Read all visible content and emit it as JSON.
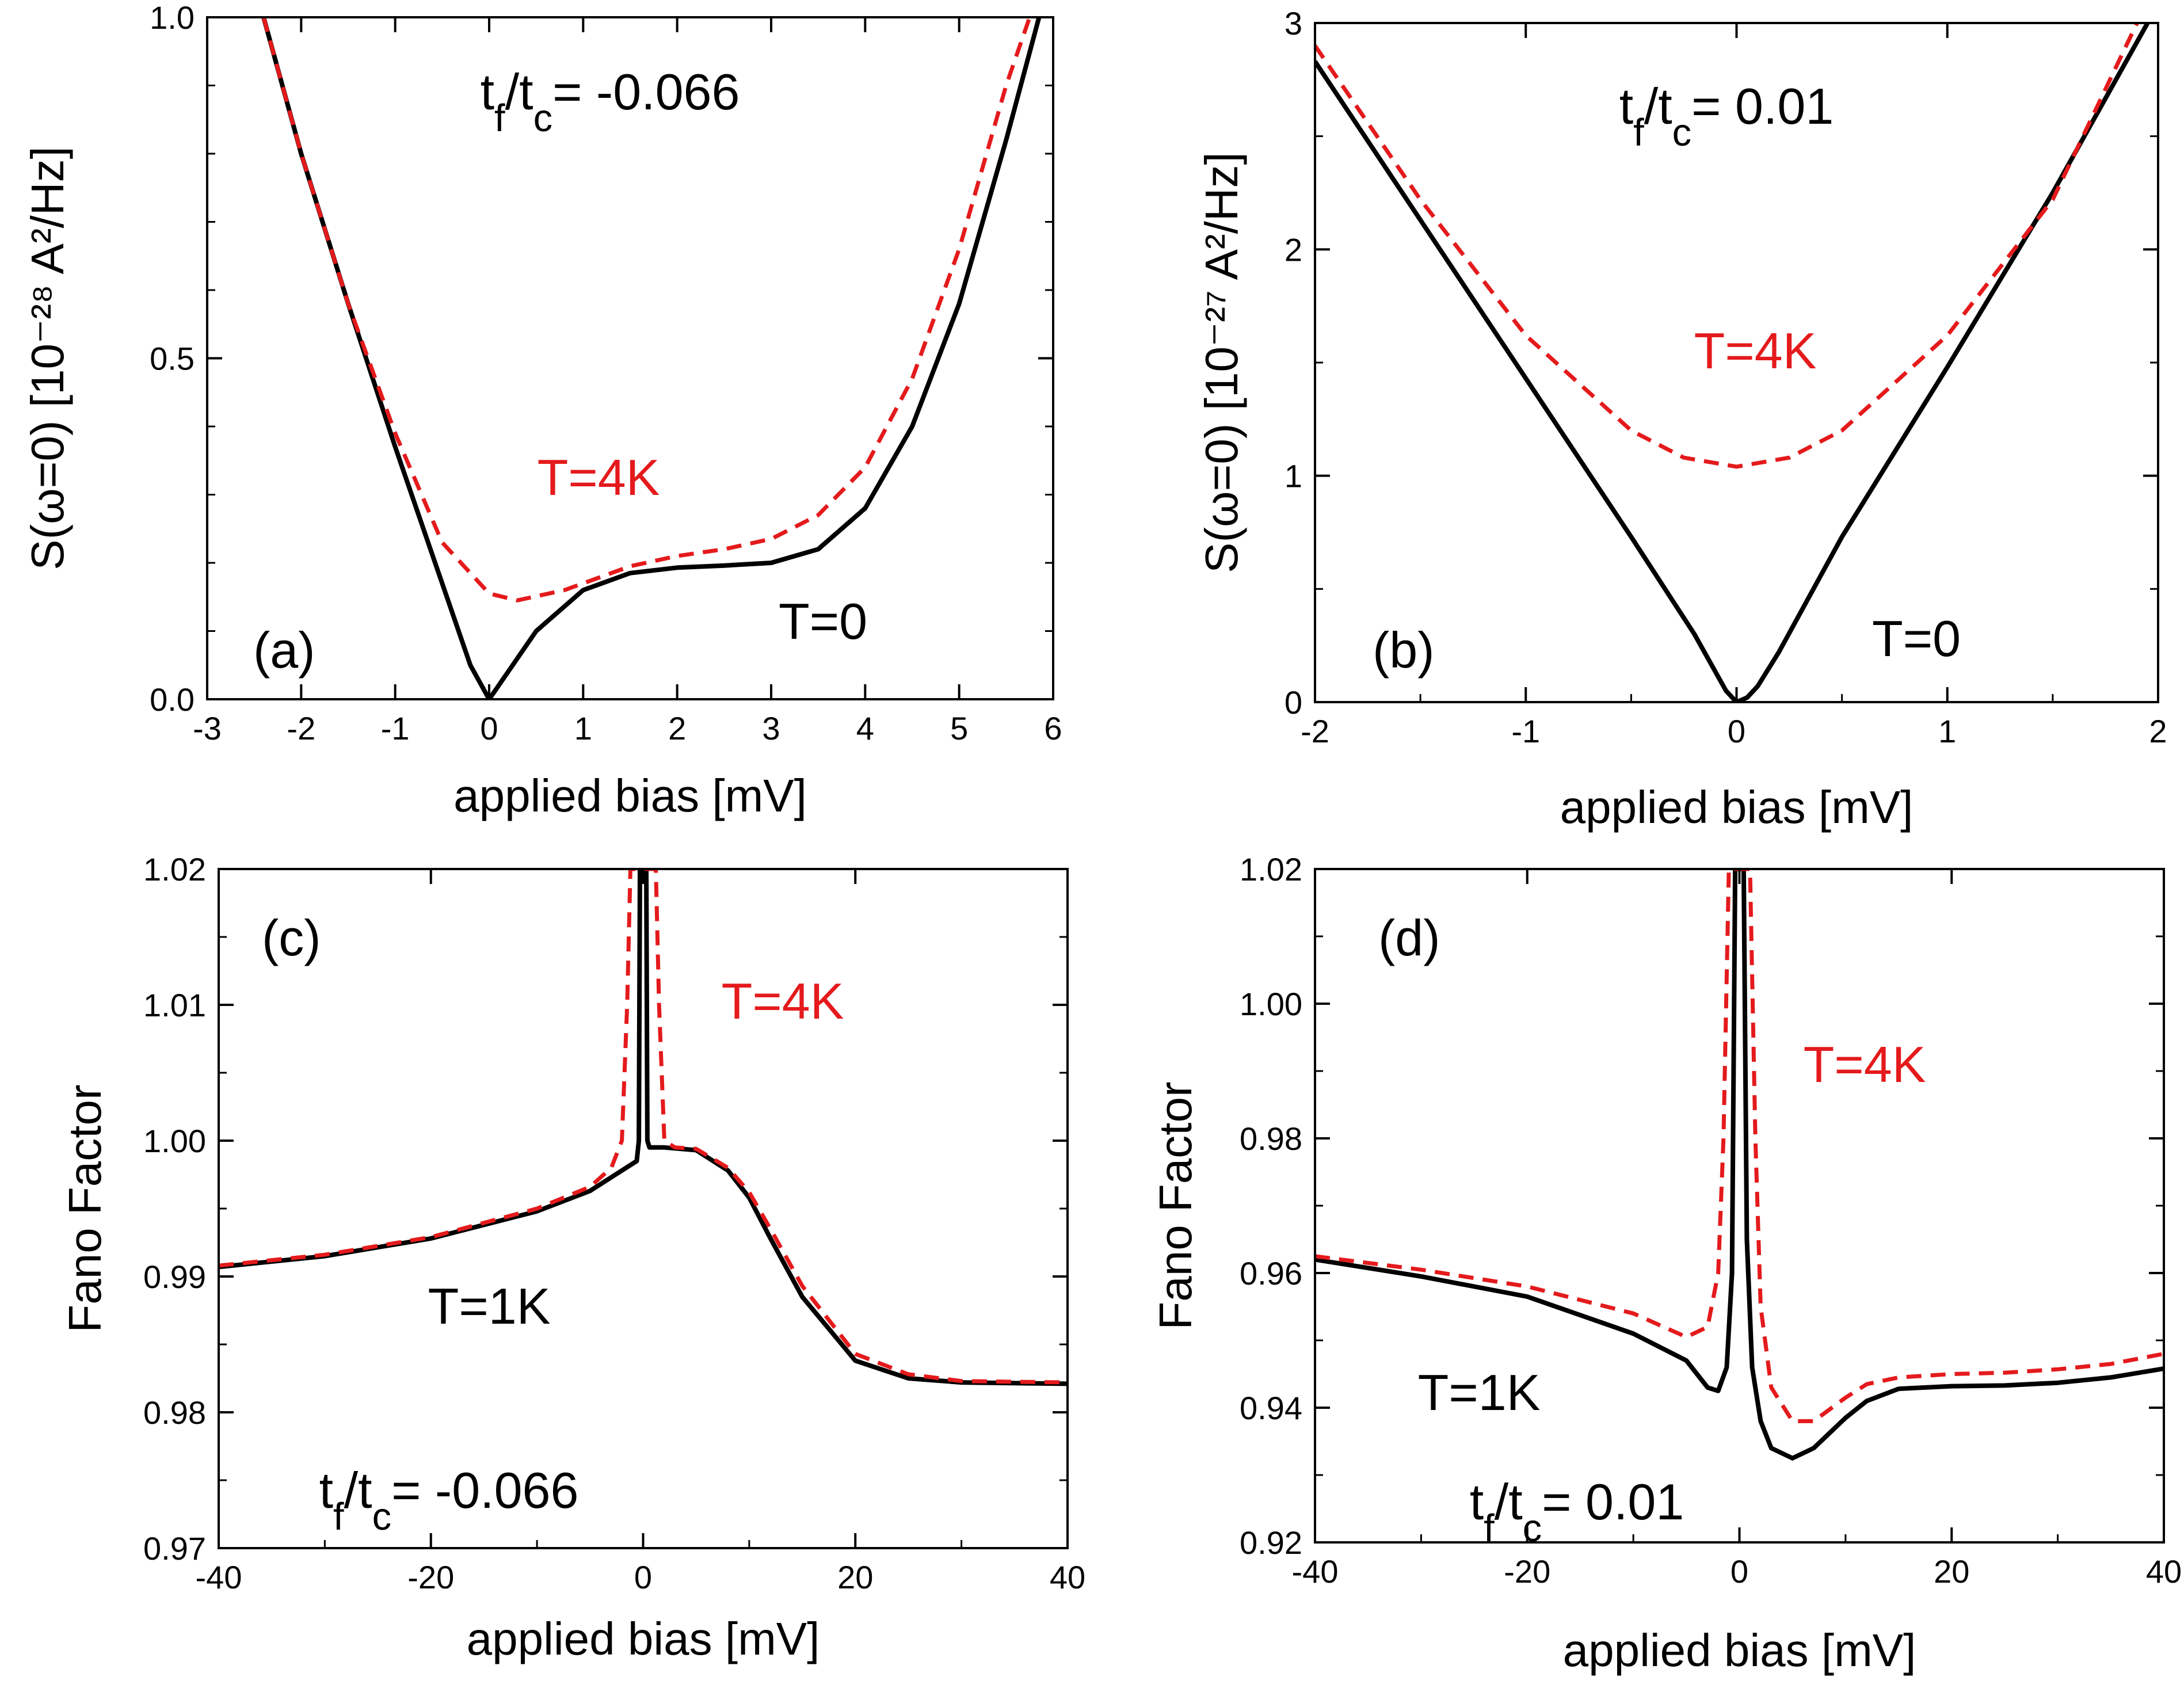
{
  "figure": {
    "colors": {
      "black": "#000000",
      "red": "#e41a1c",
      "background": "#ffffff"
    }
  },
  "chart_data": [
    {
      "id": "a",
      "type": "line",
      "panel_label": "(a)",
      "title": "",
      "xlabel": "applied bias [mV]",
      "ylabel": "S(ω=0) [10⁻²⁸ A²/Hz]",
      "xlim": [
        -3,
        6
      ],
      "ylim": [
        0,
        1.0
      ],
      "x_ticks": [
        -3,
        -2,
        -1,
        0,
        1,
        2,
        3,
        4,
        5,
        6
      ],
      "x_tick_labels": [
        "-3",
        "-2",
        "-1",
        "0",
        "1",
        "2",
        "3",
        "4",
        "5",
        "6"
      ],
      "y_ticks": [
        0,
        0.5,
        1.0
      ],
      "y_tick_labels": [
        "0.0",
        "0.5",
        "1.0"
      ],
      "y_minor_ticks": [
        0.1,
        0.2,
        0.3,
        0.4,
        0.6,
        0.7,
        0.8,
        0.9
      ],
      "annotations": [
        {
          "text": "tf/tc= -0.066",
          "color": "#000000",
          "position": "top-center"
        },
        {
          "text": "T=4K",
          "color": "#e41a1c",
          "position": "middle-left"
        },
        {
          "text": "T=0",
          "color": "#000000",
          "position": "lower-right"
        }
      ],
      "series": [
        {
          "name": "T=0",
          "color": "#000000",
          "style": "solid",
          "x": [
            -2.4,
            -2.0,
            -1.5,
            -1.0,
            -0.5,
            -0.2,
            0.0,
            0.2,
            0.5,
            1.0,
            1.5,
            2.0,
            2.5,
            3.0,
            3.5,
            4.0,
            4.5,
            5.0,
            5.5,
            5.85
          ],
          "y": [
            1.0,
            0.8,
            0.58,
            0.37,
            0.17,
            0.05,
            0.0,
            0.04,
            0.1,
            0.16,
            0.185,
            0.193,
            0.196,
            0.2,
            0.22,
            0.28,
            0.4,
            0.58,
            0.82,
            1.0
          ]
        },
        {
          "name": "T=4K",
          "color": "#e41a1c",
          "style": "dashed",
          "x": [
            -2.4,
            -2.0,
            -1.5,
            -1.0,
            -0.5,
            0.0,
            0.3,
            0.8,
            1.5,
            2.0,
            2.5,
            3.0,
            3.5,
            4.0,
            4.5,
            5.0,
            5.5,
            5.75
          ],
          "y": [
            1.0,
            0.8,
            0.58,
            0.39,
            0.23,
            0.155,
            0.145,
            0.16,
            0.195,
            0.21,
            0.22,
            0.235,
            0.27,
            0.34,
            0.47,
            0.66,
            0.9,
            1.0
          ]
        }
      ]
    },
    {
      "id": "b",
      "type": "line",
      "panel_label": "(b)",
      "title": "",
      "xlabel": "applied bias [mV]",
      "ylabel": "S(ω=0) [10⁻²⁷ A²/Hz]",
      "xlim": [
        -2,
        2
      ],
      "ylim": [
        0,
        3
      ],
      "x_ticks": [
        -2,
        -1,
        0,
        1,
        2
      ],
      "x_tick_labels": [
        "-2",
        "-1",
        "0",
        "1",
        "2"
      ],
      "y_ticks": [
        0,
        1,
        2,
        3
      ],
      "y_tick_labels": [
        "0",
        "1",
        "2",
        "3"
      ],
      "y_minor_ticks": [
        0.5,
        1.5,
        2.5
      ],
      "x_minor_ticks": [
        -1.5,
        -0.5,
        0.5,
        1.5
      ],
      "annotations": [
        {
          "text": "tf/tc= 0.01",
          "color": "#000000",
          "position": "top-center"
        },
        {
          "text": "T=4K",
          "color": "#e41a1c",
          "position": "middle-center"
        },
        {
          "text": "T=0",
          "color": "#000000",
          "position": "lower-right"
        }
      ],
      "series": [
        {
          "name": "T=0",
          "color": "#000000",
          "style": "solid",
          "x": [
            -2.0,
            -1.5,
            -1.0,
            -0.5,
            -0.2,
            -0.05,
            0.0,
            0.05,
            0.1,
            0.2,
            0.5,
            1.0,
            1.5,
            1.95
          ],
          "y": [
            2.83,
            2.13,
            1.43,
            0.73,
            0.3,
            0.05,
            0.0,
            0.02,
            0.07,
            0.22,
            0.73,
            1.48,
            2.25,
            3.0
          ]
        },
        {
          "name": "T=4K",
          "color": "#e41a1c",
          "style": "dashed",
          "x": [
            -2.0,
            -1.5,
            -1.0,
            -0.5,
            -0.25,
            0.0,
            0.25,
            0.5,
            1.0,
            1.5,
            1.9
          ],
          "y": [
            2.9,
            2.22,
            1.62,
            1.2,
            1.08,
            1.04,
            1.08,
            1.2,
            1.62,
            2.22,
            3.0
          ]
        }
      ]
    },
    {
      "id": "c",
      "type": "line",
      "panel_label": "(c)",
      "title": "",
      "xlabel": "applied bias [mV]",
      "ylabel": "Fano Factor",
      "xlim": [
        -40,
        40
      ],
      "ylim": [
        0.97,
        1.02
      ],
      "x_ticks": [
        -40,
        -20,
        0,
        20,
        40
      ],
      "x_tick_labels": [
        "-40",
        "-20",
        "0",
        "20",
        "40"
      ],
      "x_minor_ticks": [
        -30,
        -10,
        10,
        30
      ],
      "y_ticks": [
        0.97,
        0.98,
        0.99,
        1.0,
        1.01,
        1.02
      ],
      "y_tick_labels": [
        "0.97",
        "0.98",
        "0.99",
        "1.00",
        "1.01",
        "1.02"
      ],
      "y_minor_ticks": [
        0.975,
        0.985,
        0.995,
        1.005,
        1.015
      ],
      "annotations": [
        {
          "text": "T=4K",
          "color": "#e41a1c",
          "position": "upper-center-right"
        },
        {
          "text": "T=1K",
          "color": "#000000",
          "position": "lower-left"
        },
        {
          "text": "tf/tc= -0.066",
          "color": "#000000",
          "position": "bottom-left"
        }
      ],
      "series": [
        {
          "name": "T=1K",
          "color": "#000000",
          "style": "solid",
          "x": [
            -40,
            -30,
            -20,
            -10,
            -5,
            -2,
            -0.6,
            -0.4,
            -0.3,
            0.3,
            0.4,
            0.6,
            2,
            5,
            8,
            10,
            12,
            15,
            20,
            25,
            30,
            40
          ],
          "y": [
            0.9907,
            0.9915,
            0.9928,
            0.9948,
            0.9963,
            0.9978,
            0.9985,
            1.0,
            1.02,
            1.02,
            1.0,
            0.9995,
            0.9995,
            0.9993,
            0.9978,
            0.9958,
            0.9928,
            0.9885,
            0.9838,
            0.9825,
            0.9822,
            0.9821
          ]
        },
        {
          "name": "T=4K",
          "color": "#e41a1c",
          "style": "dashed",
          "x": [
            -40,
            -30,
            -20,
            -10,
            -5,
            -3,
            -2,
            -1.5,
            -1.2,
            1.2,
            1.5,
            2,
            3,
            5,
            8,
            10,
            12,
            15,
            20,
            25,
            30,
            40
          ],
          "y": [
            0.9908,
            0.9916,
            0.9929,
            0.995,
            0.9966,
            0.998,
            1.0,
            1.01,
            1.02,
            1.02,
            1.01,
            1.0,
            0.9995,
            0.9994,
            0.998,
            0.9962,
            0.9935,
            0.9893,
            0.9843,
            0.9828,
            0.9823,
            0.9822
          ]
        }
      ]
    },
    {
      "id": "d",
      "type": "line",
      "panel_label": "(d)",
      "title": "",
      "xlabel": "applied bias [mV]",
      "ylabel": "Fano Factor",
      "xlim": [
        -40,
        40
      ],
      "ylim": [
        0.92,
        1.02
      ],
      "x_ticks": [
        -40,
        -20,
        0,
        20,
        40
      ],
      "x_tick_labels": [
        "-40",
        "-20",
        "0",
        "20",
        "40"
      ],
      "x_minor_ticks": [
        -30,
        -10,
        10,
        30
      ],
      "y_ticks": [
        0.92,
        0.94,
        0.96,
        0.98,
        1.0,
        1.02
      ],
      "y_tick_labels": [
        "0.92",
        "0.94",
        "0.96",
        "0.98",
        "1.00",
        "1.02"
      ],
      "y_minor_ticks": [
        0.93,
        0.95,
        0.97,
        0.99,
        1.01
      ],
      "annotations": [
        {
          "text": "T=4K",
          "color": "#e41a1c",
          "position": "upper-center-right"
        },
        {
          "text": "T=1K",
          "color": "#000000",
          "position": "lower-left"
        },
        {
          "text": "tf/tc= 0.01",
          "color": "#000000",
          "position": "bottom-left"
        }
      ],
      "series": [
        {
          "name": "T=1K",
          "color": "#000000",
          "style": "solid",
          "x": [
            -40,
            -30,
            -20,
            -10,
            -5,
            -3,
            -2,
            -1.2,
            -0.7,
            -0.4,
            0.4,
            0.7,
            1.2,
            2,
            3,
            5,
            7,
            10,
            12,
            15,
            20,
            25,
            30,
            35,
            40
          ],
          "y": [
            0.962,
            0.9595,
            0.9565,
            0.951,
            0.947,
            0.943,
            0.9425,
            0.946,
            0.96,
            1.02,
            1.02,
            0.965,
            0.946,
            0.938,
            0.934,
            0.9325,
            0.934,
            0.9385,
            0.941,
            0.9428,
            0.9432,
            0.9433,
            0.9437,
            0.9445,
            0.9458
          ]
        },
        {
          "name": "T=4K",
          "color": "#e41a1c",
          "style": "dashed",
          "x": [
            -40,
            -30,
            -20,
            -10,
            -5,
            -3,
            -2,
            -1.5,
            -1.0,
            1.0,
            1.5,
            2,
            3,
            5,
            7,
            10,
            12,
            15,
            20,
            25,
            30,
            35,
            40
          ],
          "y": [
            0.9625,
            0.9605,
            0.958,
            0.954,
            0.9505,
            0.952,
            0.96,
            0.98,
            1.02,
            1.02,
            0.98,
            0.955,
            0.943,
            0.938,
            0.938,
            0.9415,
            0.9435,
            0.9445,
            0.945,
            0.9452,
            0.9457,
            0.9465,
            0.948
          ]
        }
      ]
    }
  ]
}
